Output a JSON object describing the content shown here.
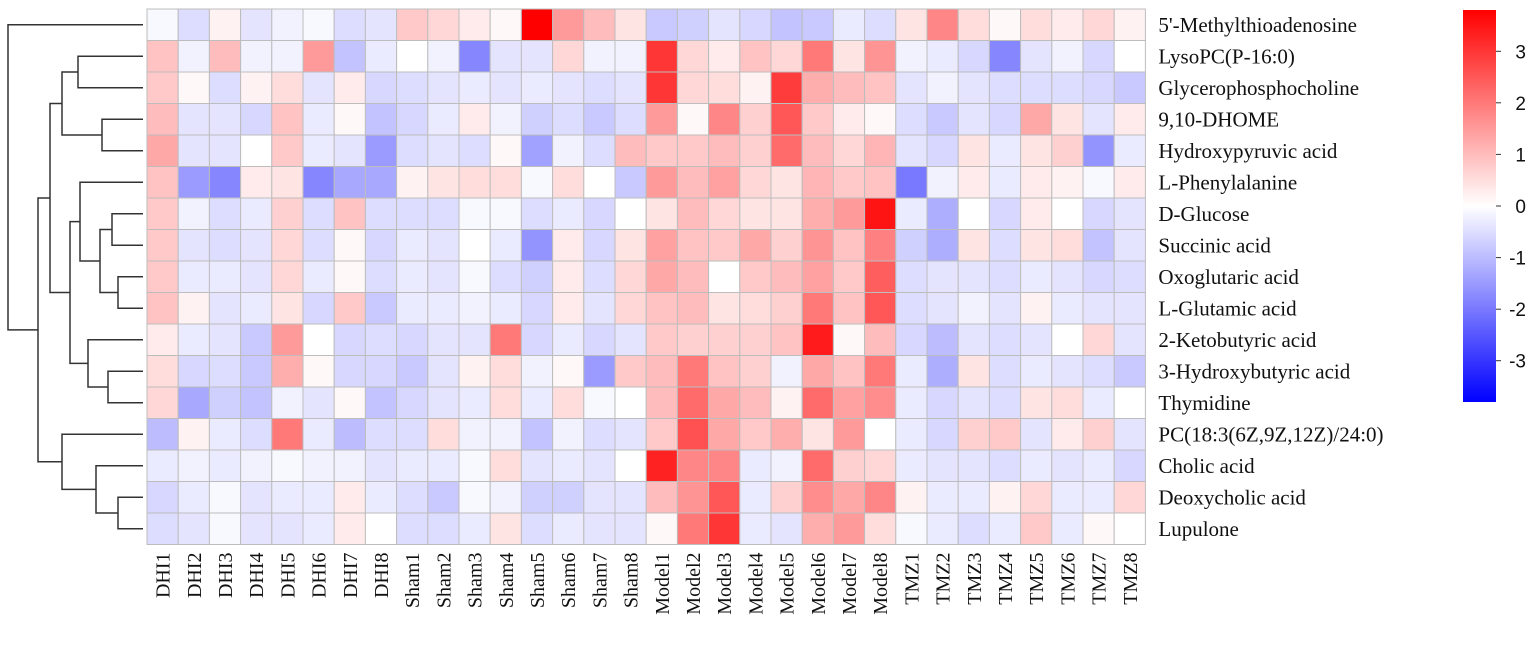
{
  "chart_data": {
    "type": "heatmap",
    "title": "",
    "xlabel": "",
    "ylabel": "",
    "columns": [
      "DHI1",
      "DHI2",
      "DHI3",
      "DHI4",
      "DHI5",
      "DHI6",
      "DHI7",
      "DHI8",
      "Sham1",
      "Sham2",
      "Sham3",
      "Sham4",
      "Sham5",
      "Sham6",
      "Sham7",
      "Sham8",
      "Model1",
      "Model2",
      "Model3",
      "Model4",
      "Model5",
      "Model6",
      "Model7",
      "Model8",
      "TMZ1",
      "TMZ2",
      "TMZ3",
      "TMZ4",
      "TMZ5",
      "TMZ6",
      "TMZ7",
      "TMZ8"
    ],
    "rows": [
      "5'-Methylthioadenosine",
      "LysoPC(P-16:0)",
      "Glycerophosphocholine",
      "9,10-DHOME",
      "Hydroxypyruvic acid",
      "L-Phenylalanine",
      "D-Glucose",
      "Succinic acid",
      "Oxoglutaric acid",
      "L-Glutamic acid",
      "2-Ketobutyric acid",
      "3-Hydroxybutyric acid",
      "Thymidine",
      "PC(18:3(6Z,9Z,12Z)/24:0)",
      "Cholic acid",
      "Deoxycholic acid",
      "Lupulone"
    ],
    "values": [
      [
        -0.1,
        -0.5,
        0.2,
        -0.4,
        -0.2,
        -0.1,
        -0.5,
        -0.4,
        0.8,
        0.6,
        0.3,
        0.1,
        3.8,
        1.5,
        1.0,
        0.4,
        -0.8,
        -0.7,
        -0.4,
        -0.6,
        -0.9,
        -0.8,
        -0.3,
        -0.5,
        0.4,
        1.8,
        0.5,
        0.1,
        0.5,
        0.3,
        0.6,
        0.2
      ],
      [
        0.9,
        -0.2,
        1.0,
        -0.2,
        -0.2,
        1.5,
        -0.9,
        -0.3,
        0.0,
        -0.2,
        -1.8,
        -0.4,
        -0.4,
        0.6,
        -0.2,
        -0.2,
        3.0,
        0.6,
        0.3,
        0.9,
        0.6,
        2.0,
        0.4,
        1.6,
        -0.2,
        -0.3,
        -0.6,
        -1.8,
        -0.4,
        -0.2,
        -0.6,
        0.0
      ],
      [
        0.8,
        0.1,
        -0.5,
        0.2,
        0.5,
        -0.4,
        0.3,
        -0.6,
        -0.5,
        -0.4,
        -0.3,
        -0.4,
        -0.3,
        -0.4,
        -0.5,
        -0.4,
        3.0,
        0.6,
        0.5,
        0.2,
        2.9,
        1.2,
        1.0,
        0.9,
        -0.4,
        -0.2,
        -0.4,
        -0.5,
        -0.5,
        -0.5,
        -0.6,
        -0.8
      ],
      [
        1.0,
        -0.4,
        -0.4,
        -0.6,
        0.9,
        -0.3,
        0.1,
        -0.9,
        -0.6,
        -0.3,
        0.3,
        -0.2,
        -0.7,
        -0.5,
        -0.8,
        -0.5,
        1.5,
        0.1,
        1.8,
        0.7,
        2.5,
        0.8,
        0.3,
        0.1,
        -0.5,
        -0.8,
        -0.4,
        -0.6,
        1.3,
        0.4,
        -0.4,
        0.3
      ],
      [
        1.3,
        -0.4,
        -0.4,
        0.0,
        0.8,
        -0.3,
        -0.4,
        -1.5,
        -0.5,
        -0.4,
        -0.5,
        0.1,
        -1.4,
        -0.2,
        -0.5,
        1.0,
        0.8,
        0.8,
        1.0,
        0.7,
        2.2,
        1.0,
        0.6,
        1.1,
        -0.4,
        -0.6,
        0.4,
        -0.3,
        0.4,
        0.7,
        -1.6,
        -0.3
      ],
      [
        0.9,
        -1.5,
        -1.8,
        0.3,
        0.4,
        -1.8,
        -1.3,
        -1.3,
        0.2,
        0.4,
        0.5,
        0.5,
        -0.1,
        0.5,
        0.0,
        -0.8,
        1.5,
        1.0,
        1.4,
        0.6,
        0.4,
        1.1,
        0.8,
        0.9,
        -2.0,
        -0.2,
        0.3,
        -0.3,
        0.3,
        0.2,
        -0.1,
        0.3
      ],
      [
        0.8,
        -0.2,
        -0.5,
        -0.3,
        0.7,
        -0.5,
        0.9,
        -0.5,
        -0.5,
        -0.5,
        -0.1,
        -0.1,
        -0.5,
        -0.3,
        -0.6,
        0.0,
        0.4,
        1.0,
        0.6,
        0.4,
        0.4,
        1.2,
        1.5,
        3.5,
        -0.3,
        -1.2,
        0.0,
        -0.6,
        0.3,
        0.0,
        -0.6,
        -0.4
      ],
      [
        0.8,
        -0.4,
        -0.5,
        -0.4,
        0.6,
        -0.5,
        0.1,
        -0.6,
        -0.3,
        -0.4,
        0.0,
        -0.3,
        -1.6,
        0.3,
        -0.6,
        0.4,
        1.4,
        0.9,
        0.8,
        1.3,
        0.7,
        1.6,
        0.9,
        1.9,
        -0.7,
        -1.2,
        0.4,
        -0.5,
        0.4,
        0.5,
        -0.9,
        -0.4
      ],
      [
        0.8,
        -0.3,
        -0.3,
        -0.4,
        0.6,
        -0.3,
        0.1,
        -0.5,
        -0.3,
        -0.4,
        -0.1,
        -0.5,
        -0.7,
        0.3,
        -0.5,
        0.6,
        1.3,
        1.0,
        0.0,
        0.8,
        1.0,
        1.4,
        0.8,
        2.4,
        -0.5,
        -0.4,
        -0.4,
        -0.5,
        -0.3,
        -0.4,
        -0.6,
        -0.5
      ],
      [
        0.9,
        0.2,
        -0.4,
        -0.3,
        0.4,
        -0.6,
        0.8,
        -0.8,
        -0.3,
        -0.3,
        -0.2,
        -0.3,
        -0.6,
        0.3,
        -0.4,
        0.6,
        0.9,
        1.0,
        0.4,
        0.5,
        0.7,
        2.0,
        0.9,
        2.5,
        -0.5,
        -0.4,
        -0.2,
        -0.4,
        0.2,
        -0.3,
        -0.4,
        -0.4
      ],
      [
        0.3,
        -0.3,
        -0.4,
        -0.8,
        1.5,
        0.0,
        -0.6,
        -0.5,
        -0.6,
        -0.4,
        -0.4,
        2.0,
        -0.6,
        -0.3,
        -0.6,
        -0.4,
        0.8,
        0.7,
        0.7,
        0.7,
        0.9,
        3.4,
        0.1,
        1.0,
        -0.6,
        -1.0,
        -0.4,
        -0.5,
        -0.4,
        0.0,
        0.6,
        -0.4
      ],
      [
        0.5,
        -0.6,
        -0.5,
        -0.8,
        1.2,
        0.1,
        -0.6,
        -0.6,
        -0.8,
        -0.4,
        0.2,
        0.5,
        -0.2,
        0.1,
        -1.5,
        0.8,
        1.0,
        2.0,
        0.9,
        0.7,
        -0.2,
        1.3,
        0.9,
        2.0,
        -0.3,
        -1.2,
        0.4,
        -0.5,
        -0.3,
        -0.4,
        -0.5,
        -0.8
      ],
      [
        0.6,
        -1.3,
        -0.7,
        -0.9,
        -0.2,
        -0.4,
        0.1,
        -0.9,
        -0.6,
        -0.4,
        -0.3,
        0.5,
        -0.3,
        0.5,
        -0.1,
        0.0,
        1.0,
        2.2,
        1.3,
        1.0,
        0.2,
        2.2,
        1.4,
        1.7,
        -0.3,
        -0.6,
        -0.4,
        -0.5,
        0.4,
        0.5,
        -0.3,
        0.0
      ],
      [
        -1.0,
        0.2,
        -0.3,
        -0.5,
        2.0,
        -0.3,
        -1.0,
        -0.5,
        -0.5,
        0.5,
        -0.2,
        -0.2,
        -0.9,
        -0.2,
        -0.5,
        -0.4,
        0.8,
        2.6,
        1.3,
        0.8,
        1.2,
        0.4,
        1.5,
        0.0,
        -0.3,
        -0.6,
        0.7,
        0.8,
        -0.4,
        0.3,
        0.7,
        -0.4
      ],
      [
        -0.3,
        -0.2,
        -0.3,
        -0.2,
        -0.1,
        -0.2,
        -0.2,
        -0.4,
        -0.3,
        -0.3,
        -0.1,
        0.5,
        -0.4,
        -0.3,
        -0.4,
        0.0,
        3.3,
        1.8,
        1.8,
        -0.3,
        -0.2,
        2.2,
        0.7,
        0.6,
        -0.3,
        -0.4,
        -0.4,
        -0.5,
        -0.3,
        -0.4,
        -0.3,
        -0.6
      ],
      [
        -0.6,
        -0.3,
        -0.1,
        -0.4,
        -0.3,
        -0.3,
        0.3,
        -0.3,
        -0.5,
        -0.8,
        -0.1,
        -0.2,
        -0.7,
        -0.7,
        -0.4,
        -0.4,
        1.0,
        1.6,
        2.5,
        -0.3,
        0.7,
        1.7,
        1.3,
        1.8,
        0.2,
        -0.3,
        -0.3,
        0.2,
        0.6,
        -0.3,
        -0.3,
        0.6
      ],
      [
        -0.5,
        -0.4,
        -0.1,
        -0.4,
        -0.4,
        -0.3,
        0.3,
        0.0,
        -0.5,
        -0.5,
        -0.3,
        0.4,
        -0.5,
        -0.3,
        -0.4,
        -0.4,
        0.1,
        2.0,
        3.0,
        -0.3,
        -0.4,
        1.2,
        1.5,
        0.5,
        -0.1,
        -0.3,
        -0.5,
        -0.3,
        0.8,
        -0.3,
        0.1,
        0.0
      ]
    ],
    "color_scale": {
      "min": -3.8,
      "max": 3.8,
      "low": "#0000ff",
      "mid": "#ffffff",
      "high": "#ff0000"
    },
    "colorbar_ticks": [
      3,
      2,
      1,
      0,
      -1,
      -2,
      -3
    ],
    "colorbar_tick_labels": [
      "3",
      "2",
      "1",
      "0",
      "-1",
      "-2",
      "-3"
    ],
    "dendrogram_side": "left",
    "grid_color": "#bdbdbd"
  }
}
